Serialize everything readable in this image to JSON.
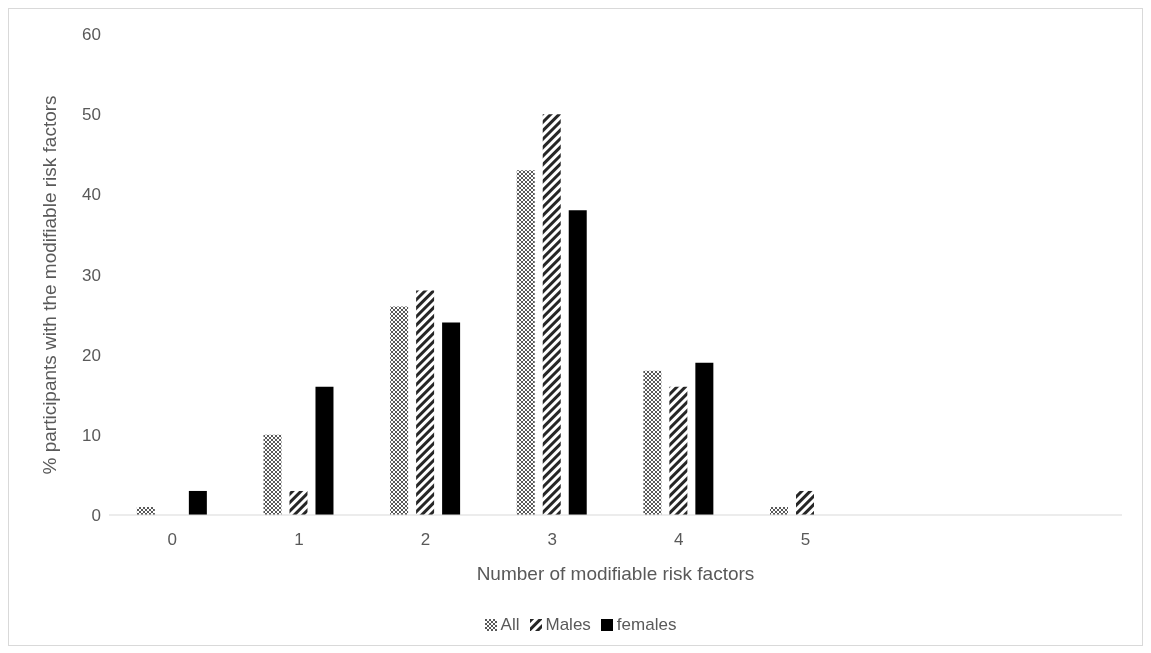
{
  "chart_data": {
    "type": "bar",
    "xlabel": "Number of modifiable risk factors",
    "ylabel": "% participants with the modifiable risk factors",
    "categories": [
      "0",
      "1",
      "2",
      "3",
      "4",
      "5",
      null,
      null
    ],
    "series": [
      {
        "name": "All",
        "color": "#595959",
        "values": [
          1,
          10,
          26,
          43,
          18,
          1,
          null,
          null
        ]
      },
      {
        "name": "Males",
        "color": "#262626",
        "values": [
          0,
          3,
          28,
          50,
          16,
          3,
          null,
          null
        ]
      },
      {
        "name": "females",
        "color": "#000000",
        "values": [
          3,
          16,
          24,
          38,
          19,
          0,
          null,
          null
        ]
      }
    ],
    "ylim": [
      0,
      60
    ],
    "yticks": [
      0,
      10,
      20,
      30,
      40,
      50,
      60
    ],
    "grid": false,
    "legend": "bottom"
  }
}
